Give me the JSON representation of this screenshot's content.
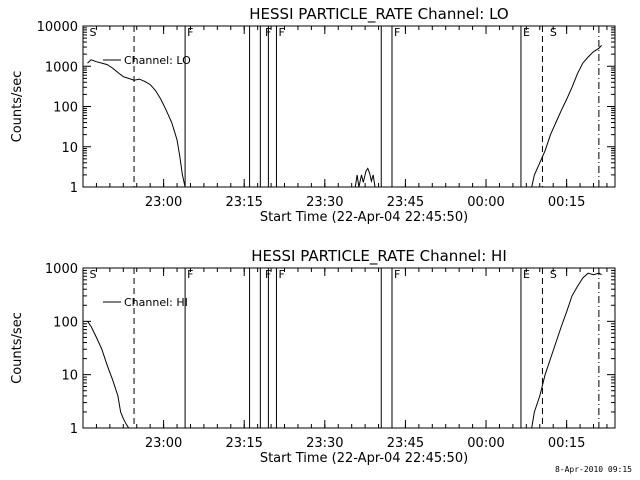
{
  "footer_timestamp": "8-Apr-2010 09:15",
  "chart_data": [
    {
      "type": "line",
      "title": "HESSI PARTICLE_RATE Channel: LO",
      "xlabel": "Start Time (22-Apr-04 22:45:50)",
      "ylabel": "Counts/sec",
      "yscale": "log",
      "ylim": [
        1,
        10000
      ],
      "xlim_minutes_from_2245": [
        0,
        99
      ],
      "x_ticks": [
        "23:00",
        "23:15",
        "23:30",
        "23:45",
        "00:00",
        "00:15"
      ],
      "y_ticks": [
        "1",
        "10",
        "100",
        "1000",
        "10000"
      ],
      "legend": "Channel: LO",
      "flag_labels": [
        {
          "label": "S",
          "time": "22:45:50"
        },
        {
          "label": "F",
          "time": "23:04:00"
        },
        {
          "label": "F",
          "time": "23:18:30"
        },
        {
          "label": "F",
          "time": "23:21:00"
        },
        {
          "label": "F",
          "time": "23:42:30"
        },
        {
          "label": "E",
          "time": "00:06:30"
        },
        {
          "label": "S",
          "time": "00:11:30"
        }
      ],
      "solid_lines": [
        "23:04:00",
        "23:16:00",
        "23:18:00",
        "23:19:30",
        "23:21:00",
        "23:40:30",
        "23:42:30",
        "00:06:30"
      ],
      "dashed_lines": [
        "22:54:30",
        "00:10:30"
      ],
      "dashdot_lines": [
        "00:21:00"
      ],
      "series": [
        {
          "segments": [
            [
              [
                "22:45:50",
                1200
              ],
              [
                "22:46:30",
                1450
              ],
              [
                "22:47:30",
                1300
              ],
              [
                "22:48:30",
                1200
              ],
              [
                "22:49:30",
                1100
              ],
              [
                "22:50:30",
                900
              ],
              [
                "22:51:30",
                700
              ],
              [
                "22:52:30",
                550
              ],
              [
                "22:53:30",
                500
              ],
              [
                "22:54:30",
                450
              ],
              [
                "22:55:30",
                480
              ],
              [
                "22:56:30",
                420
              ],
              [
                "22:57:30",
                350
              ],
              [
                "22:58:30",
                250
              ],
              [
                "22:59:30",
                150
              ],
              [
                "23:00:30",
                80
              ],
              [
                "23:01:30",
                40
              ],
              [
                "23:02:30",
                15
              ],
              [
                "23:03:00",
                6
              ],
              [
                "23:03:30",
                2
              ],
              [
                "23:04:00",
                1
              ]
            ],
            [
              [
                "23:35:40",
                1
              ],
              [
                "23:36:00",
                2
              ],
              [
                "23:36:20",
                1
              ],
              [
                "23:36:50",
                2
              ],
              [
                "23:37:10",
                1.3
              ],
              [
                "23:37:40",
                2.5
              ],
              [
                "23:38:00",
                2.9
              ],
              [
                "23:38:20",
                2.2
              ],
              [
                "23:38:40",
                1.4
              ],
              [
                "23:39:00",
                2
              ],
              [
                "23:39:20",
                1
              ]
            ],
            [
              [
                "00:08:30",
                1
              ],
              [
                "00:09:00",
                2
              ],
              [
                "00:10:00",
                4
              ],
              [
                "00:11:00",
                8
              ],
              [
                "00:12:00",
                20
              ],
              [
                "00:13:00",
                40
              ],
              [
                "00:14:00",
                80
              ],
              [
                "00:15:00",
                150
              ],
              [
                "00:16:00",
                300
              ],
              [
                "00:17:00",
                650
              ],
              [
                "00:18:00",
                1200
              ],
              [
                "00:19:00",
                1700
              ],
              [
                "00:20:00",
                2300
              ],
              [
                "00:21:00",
                2800
              ],
              [
                "00:21:30",
                3300
              ]
            ]
          ]
        }
      ]
    },
    {
      "type": "line",
      "title": "HESSI PARTICLE_RATE Channel: HI",
      "xlabel": "Start Time (22-Apr-04 22:45:50)",
      "ylabel": "Counts/sec",
      "yscale": "log",
      "ylim": [
        1,
        1000
      ],
      "xlim_minutes_from_2245": [
        0,
        99
      ],
      "x_ticks": [
        "23:00",
        "23:15",
        "23:30",
        "23:45",
        "00:00",
        "00:15"
      ],
      "y_ticks": [
        "1",
        "10",
        "100",
        "1000"
      ],
      "legend": "Channel: HI",
      "flag_labels": [
        {
          "label": "S",
          "time": "22:45:50"
        },
        {
          "label": "F",
          "time": "23:04:00"
        },
        {
          "label": "F",
          "time": "23:18:30"
        },
        {
          "label": "F",
          "time": "23:21:00"
        },
        {
          "label": "F",
          "time": "23:42:30"
        },
        {
          "label": "E",
          "time": "00:06:30"
        },
        {
          "label": "S",
          "time": "00:11:30"
        }
      ],
      "solid_lines": [
        "23:04:00",
        "23:16:00",
        "23:18:00",
        "23:19:30",
        "23:21:00",
        "23:40:30",
        "23:42:30",
        "00:06:30"
      ],
      "dashed_lines": [
        "22:54:30",
        "00:10:30"
      ],
      "dashdot_lines": [
        "00:21:00"
      ],
      "series": [
        {
          "segments": [
            [
              [
                "22:45:50",
                100
              ],
              [
                "22:46:30",
                80
              ],
              [
                "22:47:30",
                50
              ],
              [
                "22:48:30",
                30
              ],
              [
                "22:49:30",
                15
              ],
              [
                "22:50:30",
                8
              ],
              [
                "22:51:30",
                4
              ],
              [
                "22:52:00",
                2
              ],
              [
                "22:52:30",
                1.5
              ],
              [
                "22:53:00",
                1.2
              ],
              [
                "22:53:30",
                1
              ]
            ],
            [
              [
                "00:08:30",
                1
              ],
              [
                "00:09:00",
                2
              ],
              [
                "00:10:00",
                4
              ],
              [
                "00:11:00",
                10
              ],
              [
                "00:12:00",
                20
              ],
              [
                "00:13:00",
                40
              ],
              [
                "00:14:00",
                80
              ],
              [
                "00:15:00",
                150
              ],
              [
                "00:16:00",
                300
              ],
              [
                "00:17:00",
                450
              ],
              [
                "00:18:00",
                650
              ],
              [
                "00:19:00",
                800
              ],
              [
                "00:20:00",
                750
              ],
              [
                "00:21:00",
                800
              ],
              [
                "00:21:30",
                750
              ]
            ]
          ]
        }
      ]
    }
  ]
}
